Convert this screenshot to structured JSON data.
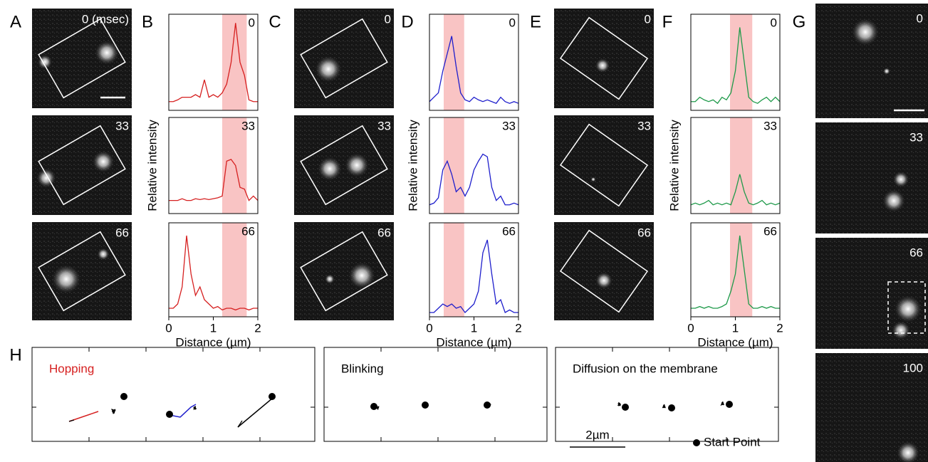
{
  "chart_data": [
    {
      "type": "line",
      "annotation": "0",
      "x": [
        0,
        0.1,
        0.2,
        0.3,
        0.4,
        0.5,
        0.6,
        0.7,
        0.8,
        0.9,
        1,
        1.1,
        1.2,
        1.3,
        1.4,
        1.5,
        1.6,
        1.7,
        1.8,
        1.9,
        2
      ],
      "series": [
        {
          "color": "#d62020",
          "values": [
            0.1,
            0.1,
            0.12,
            0.15,
            0.15,
            0.15,
            0.18,
            0.15,
            0.35,
            0.15,
            0.18,
            0.15,
            0.2,
            0.3,
            0.55,
            1.0,
            0.55,
            0.4,
            0.12,
            0.1,
            0.1
          ]
        }
      ],
      "xlim": [
        0,
        2
      ],
      "ylim": [
        0,
        1.1
      ],
      "band": [
        1.2,
        1.75
      ],
      "band_color": "#f9c4c4"
    },
    {
      "type": "line",
      "annotation": "33",
      "ylabel": "Relative intensity",
      "x": [
        0,
        0.1,
        0.2,
        0.3,
        0.4,
        0.5,
        0.6,
        0.7,
        0.8,
        0.9,
        1,
        1.1,
        1.2,
        1.3,
        1.4,
        1.5,
        1.6,
        1.7,
        1.8,
        1.9,
        2
      ],
      "series": [
        {
          "color": "#d62020",
          "values": [
            0.15,
            0.15,
            0.15,
            0.17,
            0.15,
            0.15,
            0.17,
            0.16,
            0.17,
            0.16,
            0.17,
            0.18,
            0.2,
            0.6,
            0.62,
            0.55,
            0.3,
            0.28,
            0.15,
            0.2,
            0.15
          ]
        }
      ],
      "xlim": [
        0,
        2
      ],
      "ylim": [
        0,
        1.1
      ],
      "band": [
        1.2,
        1.75
      ],
      "band_color": "#f9c4c4"
    },
    {
      "type": "line",
      "annotation": "66",
      "xlabel": "Distance (µm)",
      "xticks": [
        0,
        1,
        2
      ],
      "x": [
        0,
        0.1,
        0.2,
        0.3,
        0.4,
        0.5,
        0.6,
        0.7,
        0.8,
        0.9,
        1,
        1.1,
        1.2,
        1.3,
        1.4,
        1.5,
        1.6,
        1.7,
        1.8,
        1.9,
        2
      ],
      "series": [
        {
          "color": "#d62020",
          "values": [
            0.1,
            0.1,
            0.15,
            0.35,
            0.95,
            0.5,
            0.25,
            0.35,
            0.2,
            0.15,
            0.1,
            0.12,
            0.08,
            0.1,
            0.1,
            0.08,
            0.1,
            0.1,
            0.08,
            0.1,
            0.1
          ]
        }
      ],
      "xlim": [
        0,
        2
      ],
      "ylim": [
        0,
        1.1
      ],
      "band": [
        1.2,
        1.75
      ],
      "band_color": "#f9c4c4"
    },
    {
      "type": "line",
      "annotation": "0",
      "x": [
        0,
        0.1,
        0.2,
        0.3,
        0.4,
        0.5,
        0.6,
        0.7,
        0.8,
        0.9,
        1,
        1.1,
        1.2,
        1.3,
        1.4,
        1.5,
        1.6,
        1.7,
        1.8,
        1.9,
        2
      ],
      "series": [
        {
          "color": "#1f1fcc",
          "values": [
            0.1,
            0.15,
            0.2,
            0.45,
            0.65,
            0.85,
            0.5,
            0.2,
            0.12,
            0.1,
            0.15,
            0.12,
            0.1,
            0.12,
            0.1,
            0.08,
            0.15,
            0.1,
            0.08,
            0.1,
            0.08
          ]
        }
      ],
      "xlim": [
        0,
        2
      ],
      "ylim": [
        0,
        1.1
      ],
      "band": [
        0.32,
        0.78
      ],
      "band_color": "#f9c4c4"
    },
    {
      "type": "line",
      "annotation": "33",
      "ylabel": "Relative intensity",
      "x": [
        0,
        0.1,
        0.2,
        0.3,
        0.4,
        0.5,
        0.6,
        0.7,
        0.8,
        0.9,
        1,
        1.1,
        1.2,
        1.3,
        1.4,
        1.5,
        1.6,
        1.7,
        1.8,
        1.9,
        2
      ],
      "series": [
        {
          "color": "#1f1fcc",
          "values": [
            0.1,
            0.12,
            0.18,
            0.5,
            0.6,
            0.45,
            0.25,
            0.3,
            0.2,
            0.3,
            0.5,
            0.6,
            0.68,
            0.65,
            0.3,
            0.15,
            0.2,
            0.1,
            0.1,
            0.12,
            0.1
          ]
        }
      ],
      "xlim": [
        0,
        2
      ],
      "ylim": [
        0,
        1.1
      ],
      "band": [
        0.32,
        0.78
      ],
      "band_color": "#f9c4c4"
    },
    {
      "type": "line",
      "annotation": "66",
      "xlabel": "Distance (µm)",
      "xticks": [
        0,
        1,
        2
      ],
      "x": [
        0,
        0.1,
        0.2,
        0.3,
        0.4,
        0.5,
        0.6,
        0.7,
        0.8,
        0.9,
        1,
        1.1,
        1.2,
        1.3,
        1.4,
        1.5,
        1.6,
        1.7,
        1.8,
        1.9,
        2
      ],
      "series": [
        {
          "color": "#1f1fcc",
          "values": [
            0.05,
            0.05,
            0.1,
            0.15,
            0.12,
            0.15,
            0.1,
            0.12,
            0.05,
            0.1,
            0.15,
            0.3,
            0.75,
            0.9,
            0.5,
            0.15,
            0.2,
            0.05,
            0.08,
            0.05,
            0.05
          ]
        }
      ],
      "xlim": [
        0,
        2
      ],
      "ylim": [
        0,
        1.1
      ],
      "band": [
        0.32,
        0.78
      ],
      "band_color": "#f9c4c4"
    },
    {
      "type": "line",
      "annotation": "0",
      "x": [
        0,
        0.1,
        0.2,
        0.3,
        0.4,
        0.5,
        0.6,
        0.7,
        0.8,
        0.9,
        1,
        1.1,
        1.2,
        1.3,
        1.4,
        1.5,
        1.6,
        1.7,
        1.8,
        1.9,
        2
      ],
      "series": [
        {
          "color": "#1f9a4a",
          "values": [
            0.1,
            0.1,
            0.15,
            0.12,
            0.1,
            0.12,
            0.08,
            0.15,
            0.12,
            0.2,
            0.45,
            0.95,
            0.55,
            0.15,
            0.1,
            0.08,
            0.12,
            0.15,
            0.1,
            0.15,
            0.1
          ]
        }
      ],
      "xlim": [
        0,
        2
      ],
      "ylim": [
        0,
        1.1
      ],
      "band": [
        0.88,
        1.38
      ],
      "band_color": "#f9c4c4"
    },
    {
      "type": "line",
      "annotation": "33",
      "ylabel": "Relative intensity",
      "x": [
        0,
        0.1,
        0.2,
        0.3,
        0.4,
        0.5,
        0.6,
        0.7,
        0.8,
        0.9,
        1,
        1.1,
        1.2,
        1.3,
        1.4,
        1.5,
        1.6,
        1.7,
        1.8,
        1.9,
        2
      ],
      "series": [
        {
          "color": "#1f9a4a",
          "values": [
            0.1,
            0.12,
            0.1,
            0.12,
            0.15,
            0.1,
            0.12,
            0.1,
            0.12,
            0.1,
            0.25,
            0.45,
            0.25,
            0.12,
            0.1,
            0.12,
            0.15,
            0.1,
            0.12,
            0.1,
            0.12
          ]
        }
      ],
      "xlim": [
        0,
        2
      ],
      "ylim": [
        0,
        1.1
      ],
      "band": [
        0.88,
        1.38
      ],
      "band_color": "#f9c4c4"
    },
    {
      "type": "line",
      "annotation": "66",
      "xlabel": "Distance (µm)",
      "xticks": [
        0,
        1,
        2
      ],
      "x": [
        0,
        0.1,
        0.2,
        0.3,
        0.4,
        0.5,
        0.6,
        0.7,
        0.8,
        0.9,
        1,
        1.1,
        1.2,
        1.3,
        1.4,
        1.5,
        1.6,
        1.7,
        1.8,
        1.9,
        2
      ],
      "series": [
        {
          "color": "#1f9a4a",
          "values": [
            0.1,
            0.1,
            0.12,
            0.1,
            0.12,
            0.1,
            0.1,
            0.12,
            0.15,
            0.3,
            0.5,
            0.95,
            0.55,
            0.15,
            0.1,
            0.1,
            0.12,
            0.1,
            0.12,
            0.1,
            0.1
          ]
        }
      ],
      "xlim": [
        0,
        2
      ],
      "ylim": [
        0,
        1.1
      ],
      "band": [
        0.88,
        1.38
      ],
      "band_color": "#f9c4c4"
    }
  ],
  "figure": {
    "panel_labels": [
      "A",
      "B",
      "C",
      "D",
      "E",
      "F",
      "G",
      "H"
    ],
    "image_times": {
      "A": [
        "0 (msec)",
        "33",
        "66"
      ],
      "C": [
        "0",
        "33",
        "66"
      ],
      "E": [
        "0",
        "33",
        "66"
      ],
      "G": [
        "0",
        "33",
        "66",
        "100"
      ]
    },
    "trajectories": {
      "titles": [
        "Hopping",
        "Blinking",
        "Diffusion on the membrane"
      ],
      "scale_bar": "2µm",
      "legend": "Start Point"
    }
  }
}
